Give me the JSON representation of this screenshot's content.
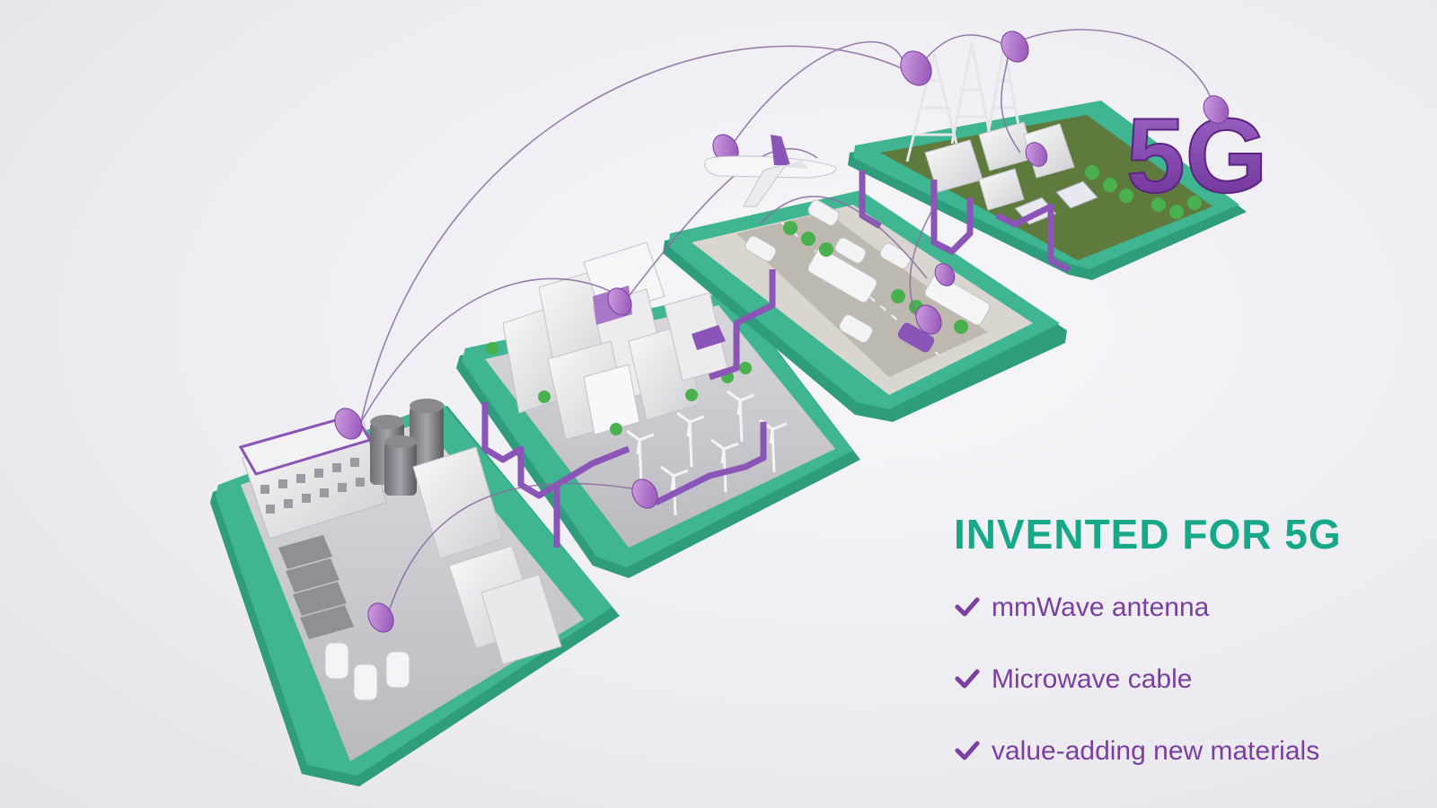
{
  "heading": "INVENTED FOR 5G",
  "badge_text": "5G",
  "features": [
    {
      "label": "mmWave antenna",
      "icon": "check-icon"
    },
    {
      "label": "Microwave cable",
      "icon": "check-icon"
    },
    {
      "label": "value-adding new materials",
      "icon": "check-icon"
    }
  ],
  "colors": {
    "heading": "#17a88a",
    "accent_purple": "#7b3fa1",
    "platform_green": "#3bb08f",
    "cable_purple": "#8b55b8"
  }
}
